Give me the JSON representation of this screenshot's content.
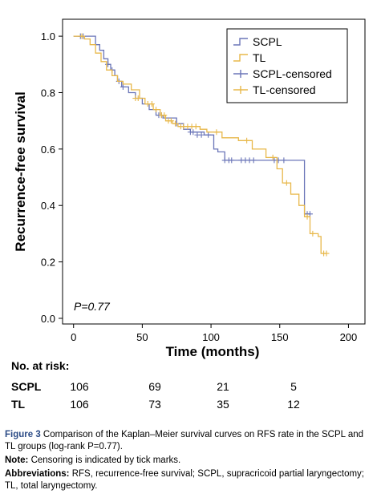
{
  "chart_data": {
    "type": "line",
    "subtype": "kaplan-meier",
    "xlabel": "Time (months)",
    "ylabel": "Recurrence-free survival",
    "xlim": [
      -8,
      212
    ],
    "ylim": [
      -0.02,
      1.06
    ],
    "xticks": [
      0,
      50,
      100,
      150,
      200
    ],
    "yticks": [
      0.0,
      0.2,
      0.4,
      0.6,
      0.8,
      1.0
    ],
    "ytick_labels": [
      "0.0",
      "0.2",
      "0.4",
      "0.6",
      "0.8",
      "1.0"
    ],
    "legend_position": "top-right",
    "annotation": "P=0.77",
    "series": [
      {
        "name": "SCPL",
        "color": "#6b76b8",
        "steps": [
          [
            0,
            1.0
          ],
          [
            14,
            1.0
          ],
          [
            16,
            0.97
          ],
          [
            19,
            0.95
          ],
          [
            22,
            0.92
          ],
          [
            25,
            0.9
          ],
          [
            27,
            0.88
          ],
          [
            30,
            0.86
          ],
          [
            32,
            0.84
          ],
          [
            35,
            0.82
          ],
          [
            40,
            0.8
          ],
          [
            45,
            0.78
          ],
          [
            50,
            0.76
          ],
          [
            55,
            0.74
          ],
          [
            60,
            0.72
          ],
          [
            65,
            0.71
          ],
          [
            75,
            0.69
          ],
          [
            80,
            0.67
          ],
          [
            85,
            0.66
          ],
          [
            95,
            0.65
          ],
          [
            102,
            0.6
          ],
          [
            105,
            0.59
          ],
          [
            110,
            0.56
          ],
          [
            165,
            0.56
          ],
          [
            168,
            0.37
          ],
          [
            172,
            0.37
          ]
        ],
        "censored": [
          [
            5,
            1.0
          ],
          [
            7,
            1.0
          ],
          [
            25,
            0.9
          ],
          [
            28,
            0.88
          ],
          [
            33,
            0.84
          ],
          [
            36,
            0.82
          ],
          [
            62,
            0.72
          ],
          [
            64,
            0.72
          ],
          [
            75,
            0.69
          ],
          [
            85,
            0.66
          ],
          [
            87,
            0.66
          ],
          [
            90,
            0.65
          ],
          [
            93,
            0.65
          ],
          [
            98,
            0.65
          ],
          [
            110,
            0.56
          ],
          [
            113,
            0.56
          ],
          [
            115,
            0.56
          ],
          [
            122,
            0.56
          ],
          [
            125,
            0.56
          ],
          [
            128,
            0.56
          ],
          [
            131,
            0.56
          ],
          [
            146,
            0.56
          ],
          [
            149,
            0.56
          ],
          [
            153,
            0.56
          ],
          [
            170,
            0.37
          ],
          [
            172,
            0.37
          ]
        ]
      },
      {
        "name": "TL",
        "color": "#e8b84a",
        "steps": [
          [
            0,
            1.0
          ],
          [
            5,
            1.0
          ],
          [
            8,
            0.99
          ],
          [
            12,
            0.97
          ],
          [
            16,
            0.94
          ],
          [
            20,
            0.91
          ],
          [
            24,
            0.88
          ],
          [
            28,
            0.86
          ],
          [
            32,
            0.84
          ],
          [
            36,
            0.83
          ],
          [
            42,
            0.81
          ],
          [
            48,
            0.78
          ],
          [
            52,
            0.76
          ],
          [
            58,
            0.74
          ],
          [
            63,
            0.72
          ],
          [
            67,
            0.7
          ],
          [
            72,
            0.69
          ],
          [
            76,
            0.68
          ],
          [
            92,
            0.67
          ],
          [
            97,
            0.66
          ],
          [
            108,
            0.64
          ],
          [
            120,
            0.63
          ],
          [
            130,
            0.6
          ],
          [
            140,
            0.57
          ],
          [
            148,
            0.53
          ],
          [
            152,
            0.48
          ],
          [
            158,
            0.44
          ],
          [
            164,
            0.4
          ],
          [
            168,
            0.36
          ],
          [
            172,
            0.3
          ],
          [
            178,
            0.29
          ],
          [
            180,
            0.23
          ],
          [
            184,
            0.23
          ]
        ],
        "censored": [
          [
            6,
            1.0
          ],
          [
            45,
            0.78
          ],
          [
            47,
            0.78
          ],
          [
            54,
            0.76
          ],
          [
            57,
            0.76
          ],
          [
            60,
            0.74
          ],
          [
            64,
            0.72
          ],
          [
            66,
            0.72
          ],
          [
            69,
            0.7
          ],
          [
            71,
            0.7
          ],
          [
            74,
            0.69
          ],
          [
            78,
            0.68
          ],
          [
            80,
            0.68
          ],
          [
            83,
            0.68
          ],
          [
            86,
            0.68
          ],
          [
            89,
            0.68
          ],
          [
            104,
            0.66
          ],
          [
            126,
            0.63
          ],
          [
            145,
            0.57
          ],
          [
            155,
            0.48
          ],
          [
            170,
            0.36
          ],
          [
            174,
            0.3
          ],
          [
            182,
            0.23
          ],
          [
            184,
            0.23
          ]
        ]
      }
    ],
    "legend": [
      "SCPL",
      "TL",
      "SCPL-censored",
      "TL-censored"
    ]
  },
  "risk_table": {
    "title": "No. at risk:",
    "rows": [
      {
        "group": "SCPL",
        "values": [
          "106",
          "69",
          "21",
          "5"
        ]
      },
      {
        "group": "TL",
        "values": [
          "106",
          "73",
          "35",
          "12"
        ]
      }
    ]
  },
  "caption": {
    "figure_label": "Figure 3",
    "figure_text": " Comparison of the Kaplan–Meier survival curves on RFS rate in the SCPL and TL groups (log-rank P=0.77).",
    "note_label": "Note:",
    "note_text": " Censoring is indicated by tick marks.",
    "abbr_label": "Abbreviations:",
    "abbr_text": " RFS, recurrence-free survival; SCPL, supracricoid partial laryngectomy; TL, total laryngectomy."
  }
}
